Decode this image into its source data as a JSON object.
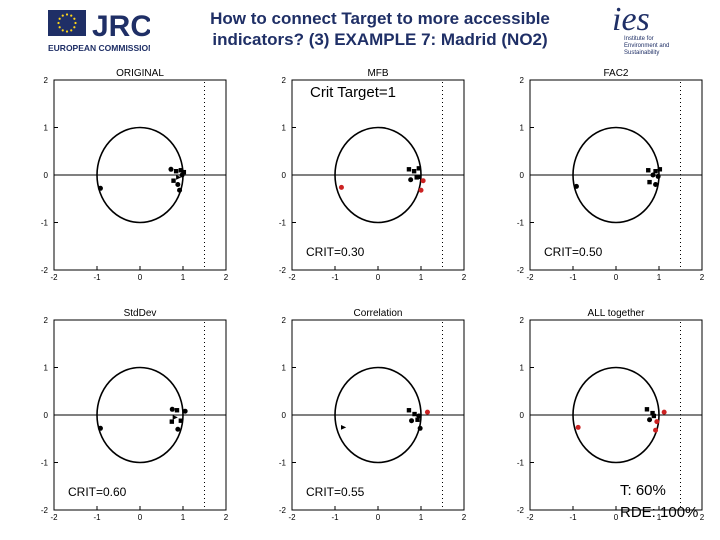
{
  "header": {
    "title_line1": "How to connect Target to more accessible",
    "title_line2": "indicators? (3) EXAMPLE 7: Madrid (NO2)",
    "jrc_logo": {
      "text": "JRC",
      "subtitle": "EUROPEAN COMMISSION",
      "icon": "eu-flag-icon",
      "color": "#1f2f66"
    },
    "ies_logo": {
      "text": "ies",
      "line1": "Institute for",
      "line2": "Environment and",
      "line3": "Sustainability",
      "color": "#1f2f66"
    }
  },
  "annotations": {
    "crit_target": "Crit Target=1",
    "t": "T: 60%",
    "rde": "RDE: 100%"
  },
  "colors": {
    "highlight": "#cc2222",
    "point": "#000000"
  },
  "chart_data": [
    {
      "type": "scatter",
      "title": "ORIGINAL",
      "crit_label": "",
      "xlim": [
        -2,
        2
      ],
      "ylim": [
        -2,
        2
      ],
      "xticks": [
        "-2",
        "-1",
        "0",
        "1",
        "2"
      ],
      "yticks": [
        "2",
        "1",
        "0",
        "-1",
        "-2"
      ],
      "circle": {
        "center": [
          0,
          0
        ],
        "radius": 1
      },
      "points": [
        {
          "x": -0.92,
          "y": -0.28,
          "marker": "circle",
          "highlight": false
        },
        {
          "x": 0.72,
          "y": 0.12,
          "marker": "circle",
          "highlight": false
        },
        {
          "x": 0.84,
          "y": 0.08,
          "marker": "square",
          "highlight": false
        },
        {
          "x": 0.9,
          "y": -0.05,
          "marker": "triangle",
          "highlight": false
        },
        {
          "x": 0.95,
          "y": 0.1,
          "marker": "square",
          "highlight": false
        },
        {
          "x": 0.78,
          "y": -0.12,
          "marker": "square",
          "highlight": false
        },
        {
          "x": 0.88,
          "y": -0.2,
          "marker": "circle",
          "highlight": false
        },
        {
          "x": 1.02,
          "y": 0.06,
          "marker": "square",
          "highlight": false
        },
        {
          "x": 0.92,
          "y": -0.32,
          "marker": "circle",
          "highlight": false
        },
        {
          "x": 0.98,
          "y": 0.0,
          "marker": "circle",
          "highlight": false
        }
      ]
    },
    {
      "type": "scatter",
      "title": "MFB",
      "crit_label": "CRIT=0.30",
      "xlim": [
        -2,
        2
      ],
      "ylim": [
        -2,
        2
      ],
      "xticks": [
        "-2",
        "-1",
        "0",
        "1",
        "2"
      ],
      "yticks": [
        "2",
        "1",
        "0",
        "-1",
        "-2"
      ],
      "circle": {
        "center": [
          0,
          0
        ],
        "radius": 1
      },
      "points": [
        {
          "x": -0.85,
          "y": -0.26,
          "marker": "circle",
          "highlight": true
        },
        {
          "x": 0.72,
          "y": 0.12,
          "marker": "square",
          "highlight": false
        },
        {
          "x": 0.84,
          "y": 0.08,
          "marker": "square",
          "highlight": false
        },
        {
          "x": 0.9,
          "y": -0.05,
          "marker": "square",
          "highlight": false
        },
        {
          "x": 0.95,
          "y": 0.14,
          "marker": "square",
          "highlight": false
        },
        {
          "x": 0.76,
          "y": -0.1,
          "marker": "circle",
          "highlight": false
        },
        {
          "x": 1.05,
          "y": -0.12,
          "marker": "circle",
          "highlight": true
        },
        {
          "x": 1.0,
          "y": -0.32,
          "marker": "circle",
          "highlight": true
        },
        {
          "x": 0.94,
          "y": -0.04,
          "marker": "square",
          "highlight": false
        }
      ]
    },
    {
      "type": "scatter",
      "title": "FAC2",
      "crit_label": "CRIT=0.50",
      "xlim": [
        -2,
        2
      ],
      "ylim": [
        -2,
        2
      ],
      "xticks": [
        "-2",
        "-1",
        "0",
        "1",
        "2"
      ],
      "yticks": [
        "2",
        "1",
        "0",
        "-1",
        "-2"
      ],
      "circle": {
        "center": [
          0,
          0
        ],
        "radius": 1
      },
      "points": [
        {
          "x": -0.92,
          "y": -0.24,
          "marker": "circle",
          "highlight": false
        },
        {
          "x": 0.75,
          "y": 0.1,
          "marker": "square",
          "highlight": false
        },
        {
          "x": 0.86,
          "y": 0.0,
          "marker": "circle",
          "highlight": false
        },
        {
          "x": 0.92,
          "y": 0.08,
          "marker": "square",
          "highlight": false
        },
        {
          "x": 1.02,
          "y": 0.12,
          "marker": "square",
          "highlight": false
        },
        {
          "x": 0.78,
          "y": -0.15,
          "marker": "square",
          "highlight": false
        },
        {
          "x": 0.92,
          "y": -0.2,
          "marker": "circle",
          "highlight": false
        },
        {
          "x": 0.98,
          "y": -0.03,
          "marker": "circle",
          "highlight": false
        }
      ]
    },
    {
      "type": "scatter",
      "title": "StdDev",
      "crit_label": "CRIT=0.60",
      "xlim": [
        -2,
        2
      ],
      "ylim": [
        -2,
        2
      ],
      "xticks": [
        "-2",
        "-1",
        "0",
        "1",
        "2"
      ],
      "yticks": [
        "2",
        "1",
        "0",
        "-1",
        "-2"
      ],
      "circle": {
        "center": [
          0,
          0
        ],
        "radius": 1
      },
      "points": [
        {
          "x": -0.92,
          "y": -0.28,
          "marker": "circle",
          "highlight": false
        },
        {
          "x": 0.75,
          "y": 0.12,
          "marker": "circle",
          "highlight": false
        },
        {
          "x": 0.86,
          "y": 0.1,
          "marker": "square",
          "highlight": false
        },
        {
          "x": 1.05,
          "y": 0.08,
          "marker": "circle",
          "highlight": false
        },
        {
          "x": 0.82,
          "y": -0.05,
          "marker": "triangle",
          "highlight": false
        },
        {
          "x": 0.95,
          "y": -0.12,
          "marker": "square",
          "highlight": false
        },
        {
          "x": 0.88,
          "y": -0.3,
          "marker": "circle",
          "highlight": false
        },
        {
          "x": 0.74,
          "y": -0.14,
          "marker": "square",
          "highlight": false
        }
      ]
    },
    {
      "type": "scatter",
      "title": "Correlation",
      "crit_label": "CRIT=0.55",
      "xlim": [
        -2,
        2
      ],
      "ylim": [
        -2,
        2
      ],
      "xticks": [
        "-2",
        "-1",
        "0",
        "1",
        "2"
      ],
      "yticks": [
        "2",
        "1",
        "0",
        "-1",
        "-2"
      ],
      "circle": {
        "center": [
          0,
          0
        ],
        "radius": 1
      },
      "points": [
        {
          "x": -0.8,
          "y": -0.26,
          "marker": "triangle",
          "highlight": false
        },
        {
          "x": 0.72,
          "y": 0.1,
          "marker": "square",
          "highlight": false
        },
        {
          "x": 0.85,
          "y": 0.02,
          "marker": "square",
          "highlight": false
        },
        {
          "x": 1.15,
          "y": 0.06,
          "marker": "circle",
          "highlight": true
        },
        {
          "x": 0.78,
          "y": -0.12,
          "marker": "circle",
          "highlight": false
        },
        {
          "x": 0.92,
          "y": -0.1,
          "marker": "square",
          "highlight": false
        },
        {
          "x": 0.98,
          "y": -0.28,
          "marker": "circle",
          "highlight": false
        },
        {
          "x": 0.95,
          "y": -0.02,
          "marker": "circle",
          "highlight": false
        }
      ]
    },
    {
      "type": "scatter",
      "title": "ALL together",
      "crit_label": "",
      "xlim": [
        -2,
        2
      ],
      "ylim": [
        -2,
        2
      ],
      "xticks": [
        "-2",
        "-1",
        "0",
        "1",
        "2"
      ],
      "yticks": [
        "2",
        "1",
        "0",
        "-1",
        "-2"
      ],
      "circle": {
        "center": [
          0,
          0
        ],
        "radius": 1
      },
      "points": [
        {
          "x": -0.88,
          "y": -0.26,
          "marker": "circle",
          "highlight": true
        },
        {
          "x": 0.72,
          "y": 0.12,
          "marker": "square",
          "highlight": false
        },
        {
          "x": 0.85,
          "y": 0.04,
          "marker": "square",
          "highlight": false
        },
        {
          "x": 1.12,
          "y": 0.06,
          "marker": "circle",
          "highlight": true
        },
        {
          "x": 0.78,
          "y": -0.1,
          "marker": "circle",
          "highlight": false
        },
        {
          "x": 0.95,
          "y": -0.14,
          "marker": "circle",
          "highlight": true
        },
        {
          "x": 0.92,
          "y": -0.32,
          "marker": "circle",
          "highlight": true
        },
        {
          "x": 0.88,
          "y": -0.02,
          "marker": "square",
          "highlight": false
        }
      ]
    }
  ]
}
